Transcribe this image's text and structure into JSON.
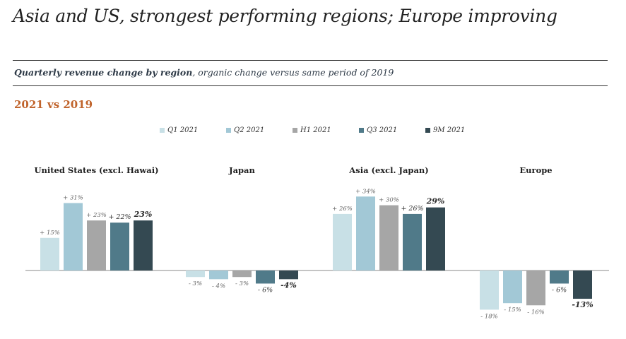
{
  "headline": "Asia and US, strongest performing regions; Europe improving",
  "subtitle_bold": "Quarterly revenue change by region",
  "subtitle_rest": ", organic change versus same period of 2019",
  "period_label": "2021 vs 2019",
  "colors": {
    "Q1 2021": "#c8e0e6",
    "Q2 2021": "#a2c8d6",
    "H1 2021": "#a6a6a6",
    "Q3 2021": "#507a89",
    "9M 2021": "#344952"
  },
  "chart_data": {
    "type": "bar",
    "categories": [
      "United States (excl. Hawai)",
      "Japan",
      "Asia (excl. Japan)",
      "Europe"
    ],
    "series": [
      {
        "name": "Q1 2021",
        "values": [
          15,
          -3,
          26,
          -18
        ],
        "labels": [
          "+ 15%",
          "- 3%",
          "+ 26%",
          "- 18%"
        ]
      },
      {
        "name": "Q2 2021",
        "values": [
          31,
          -4,
          34,
          -15
        ],
        "labels": [
          "+ 31%",
          "- 4%",
          "+ 34%",
          "- 15%"
        ]
      },
      {
        "name": "H1 2021",
        "values": [
          23,
          -3,
          30,
          -16
        ],
        "labels": [
          "+ 23%",
          "- 3%",
          "+ 30%",
          "- 16%"
        ]
      },
      {
        "name": "Q3 2021",
        "values": [
          22,
          -6,
          26,
          -6
        ],
        "labels": [
          "+ 22%",
          "- 6%",
          "+ 26%",
          "- 6%"
        ]
      },
      {
        "name": "9M 2021",
        "values": [
          23,
          -4,
          29,
          -13
        ],
        "labels": [
          "23%",
          "-4%",
          "29%",
          "-13%"
        ]
      }
    ],
    "legend_position": "top-center",
    "grid": false
  }
}
